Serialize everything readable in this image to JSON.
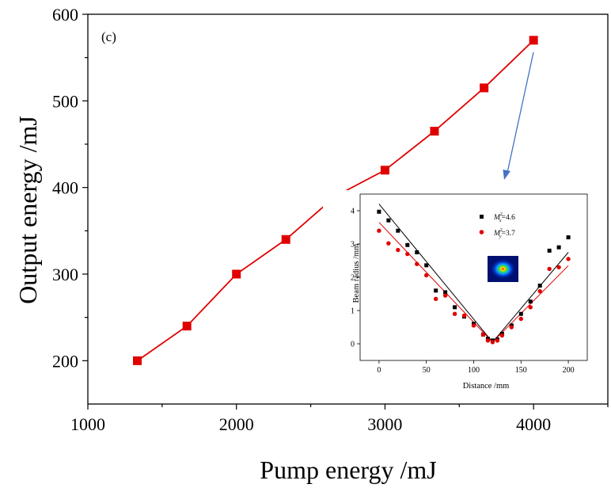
{
  "chart_data": [
    {
      "type": "line",
      "panel_label": "(c)",
      "xlabel": "Pump energy /mJ",
      "ylabel": "Output energy /mJ",
      "xlim": [
        1000,
        4500
      ],
      "ylim": [
        150,
        600
      ],
      "xticks": [
        1000,
        2000,
        3000,
        4000
      ],
      "yticks": [
        200,
        300,
        400,
        500,
        600
      ],
      "series": [
        {
          "color": "#e00000",
          "marker": "square",
          "x": [
            1333,
            1667,
            2000,
            2333,
            2667,
            3000,
            3333,
            3667,
            4000
          ],
          "y": [
            200,
            240,
            300,
            340,
            390,
            420,
            465,
            515,
            570
          ]
        }
      ],
      "annotation": {
        "type": "arrow",
        "from_point_index": 8,
        "to": "inset",
        "color": "#4472c4"
      }
    },
    {
      "type": "scatter",
      "role": "inset",
      "xlabel": "Distance /mm",
      "ylabel": "Beam radius /mm",
      "xlim": [
        -20,
        220
      ],
      "ylim": [
        -0.5,
        4.5
      ],
      "xticks": [
        0,
        50,
        100,
        150,
        200
      ],
      "yticks": [
        0,
        1,
        2,
        3,
        4
      ],
      "legend": {
        "x_label": {
          "main": "M",
          "sup": "2",
          "sub": "x",
          "rest": "=4.6"
        },
        "y_label": {
          "main": "M",
          "sup": "2",
          "sub": "y",
          "rest": "=3.7"
        }
      },
      "series": [
        {
          "color": "#000000",
          "marker": "square",
          "x": [
            0,
            10,
            20,
            30,
            40,
            50,
            60,
            70,
            80,
            90,
            100,
            110,
            115,
            120,
            125,
            130,
            140,
            150,
            160,
            170,
            180,
            190,
            200
          ],
          "y": [
            3.97,
            3.71,
            3.4,
            2.97,
            2.75,
            2.36,
            1.6,
            1.55,
            1.1,
            0.82,
            0.6,
            0.28,
            0.15,
            0.1,
            0.13,
            0.3,
            0.55,
            0.9,
            1.27,
            1.75,
            2.8,
            2.9,
            3.2
          ],
          "fit": {
            "x": [
              0,
              120,
              200
            ],
            "y": [
              4.2,
              0.05,
              2.75
            ]
          }
        },
        {
          "color": "#e00000",
          "marker": "circle",
          "x": [
            0,
            10,
            20,
            30,
            40,
            50,
            60,
            70,
            80,
            90,
            100,
            110,
            115,
            120,
            125,
            130,
            140,
            150,
            160,
            170,
            180,
            190,
            200
          ],
          "y": [
            3.4,
            3.02,
            2.82,
            2.7,
            2.4,
            2.06,
            1.35,
            1.45,
            0.9,
            0.85,
            0.55,
            0.28,
            0.1,
            0.05,
            0.1,
            0.25,
            0.5,
            0.75,
            1.1,
            1.58,
            2.25,
            2.3,
            2.55
          ],
          "fit": {
            "x": [
              0,
              120,
              200
            ],
            "y": [
              3.65,
              0.05,
              2.35
            ]
          }
        }
      ]
    }
  ]
}
